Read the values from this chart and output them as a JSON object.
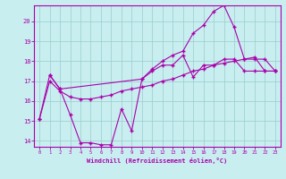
{
  "xlabel": "Windchill (Refroidissement éolien,°C)",
  "bg_color": "#c8eef0",
  "line_color": "#aa00aa",
  "grid_color": "#99cccc",
  "xlim": [
    -0.5,
    23.5
  ],
  "ylim": [
    13.7,
    20.8
  ],
  "yticks": [
    14,
    15,
    16,
    17,
    18,
    19,
    20
  ],
  "xticks": [
    0,
    1,
    2,
    3,
    4,
    5,
    6,
    7,
    8,
    9,
    10,
    11,
    12,
    13,
    14,
    15,
    16,
    17,
    18,
    19,
    20,
    21,
    22,
    23
  ],
  "line1_x": [
    0,
    1,
    2,
    3,
    4,
    5,
    6,
    7,
    8,
    9,
    10,
    11,
    12,
    13,
    14,
    15,
    16,
    17,
    18,
    19,
    20,
    21,
    22,
    23
  ],
  "line1_y": [
    15.1,
    17.3,
    16.6,
    15.3,
    13.9,
    13.9,
    13.8,
    13.8,
    15.6,
    14.5,
    17.1,
    17.5,
    17.8,
    17.8,
    18.3,
    17.2,
    17.8,
    17.8,
    18.1,
    18.1,
    17.5,
    17.5,
    17.5,
    17.5
  ],
  "line2_x": [
    0,
    1,
    2,
    3,
    4,
    5,
    6,
    7,
    8,
    9,
    10,
    11,
    12,
    13,
    14,
    15,
    16,
    17,
    18,
    19,
    20,
    21,
    22,
    23
  ],
  "line2_y": [
    15.1,
    17.0,
    16.5,
    16.2,
    16.1,
    16.1,
    16.2,
    16.3,
    16.5,
    16.6,
    16.7,
    16.8,
    17.0,
    17.1,
    17.3,
    17.5,
    17.6,
    17.8,
    17.9,
    18.0,
    18.1,
    18.1,
    18.1,
    17.5
  ],
  "line3_x": [
    1,
    2,
    10,
    11,
    12,
    13,
    14,
    15,
    16,
    17,
    18,
    19,
    20,
    21,
    22,
    23
  ],
  "line3_y": [
    17.3,
    16.6,
    17.1,
    17.6,
    18.0,
    18.3,
    18.5,
    19.4,
    19.8,
    20.5,
    20.8,
    19.7,
    18.1,
    18.2,
    17.5,
    17.5
  ]
}
